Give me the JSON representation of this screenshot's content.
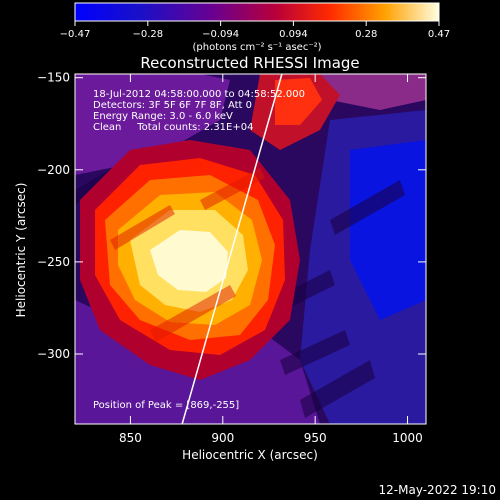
{
  "chart_data": {
    "type": "heatmap",
    "title": "Reconstructed RHESSI Image",
    "xlabel": "Heliocentric X (arcsec)",
    "ylabel": "Heliocentric Y (arcsec)",
    "xlim": [
      820,
      1010
    ],
    "ylim": [
      -338,
      -148
    ],
    "x_ticks": [
      850,
      900,
      950,
      1000
    ],
    "y_ticks": [
      -300,
      -250,
      -200,
      -150
    ],
    "x_tick_labels": [
      "850",
      "900",
      "950",
      "1000"
    ],
    "y_tick_labels": [
      "−300",
      "−250",
      "−200",
      "−150"
    ],
    "colorbar": {
      "range": [
        -0.47,
        0.47
      ],
      "tick_labels": [
        "−0.47",
        "−0.28",
        "−0.094",
        "0.094",
        "0.28",
        "0.47"
      ],
      "units_text": "(photons cm⁻² s⁻¹ asec⁻²)"
    },
    "annotations": [
      "18-Jul-2012 04:58:00.000 to 04:58:52.000",
      "Detectors: 3F 5F 6F 7F 8F, Att 0",
      "Energy Range: 3.0 - 6.0 keV",
      "Clean     Total counts: 2.31E+04"
    ],
    "peak_text": "Position of Peak = [869,-255]",
    "peak": [
      869,
      -255
    ],
    "limb_line": [
      [
        878,
        -338
      ],
      [
        932,
        -148
      ]
    ],
    "date_stamp": "12-May-2022 19:10"
  }
}
